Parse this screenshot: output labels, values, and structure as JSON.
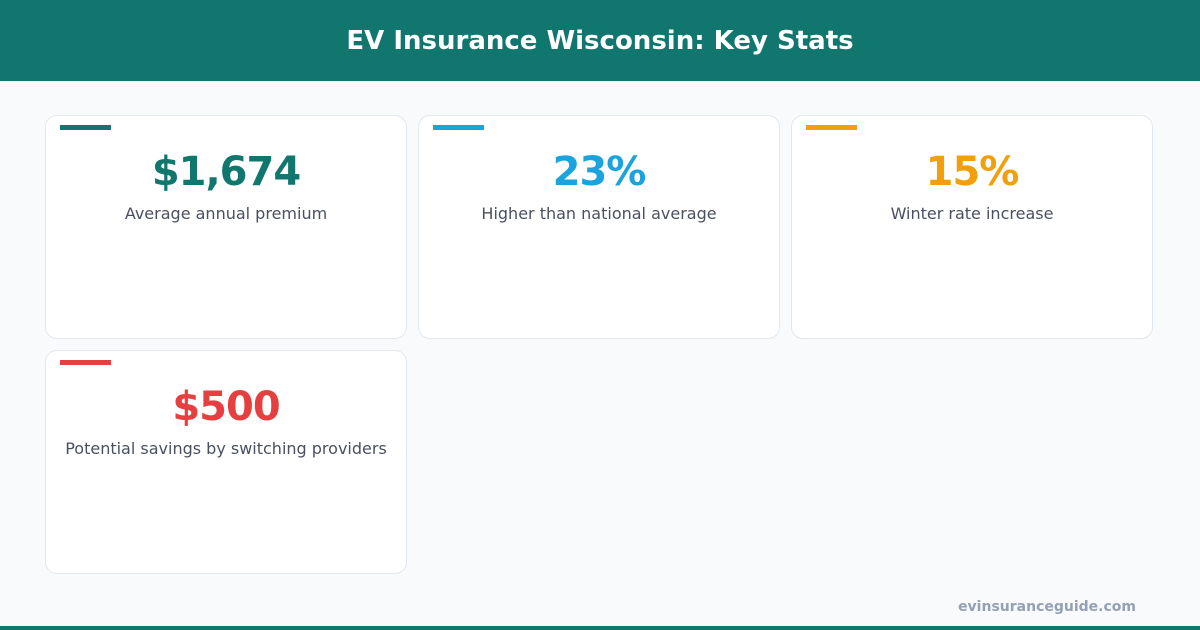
{
  "header": {
    "title": "EV Insurance Wisconsin: Key Stats"
  },
  "stats": [
    {
      "value": "$1,674",
      "label": "Average annual premium",
      "color": "#10766e"
    },
    {
      "value": "23%",
      "label": "Higher than national average",
      "color": "#1aa3dc"
    },
    {
      "value": "15%",
      "label": "Winter rate increase",
      "color": "#f29f0d"
    },
    {
      "value": "$500",
      "label": "Potential savings by switching providers",
      "color": "#e5403f"
    }
  ],
  "footer": {
    "site": "evinsuranceguide.com"
  }
}
